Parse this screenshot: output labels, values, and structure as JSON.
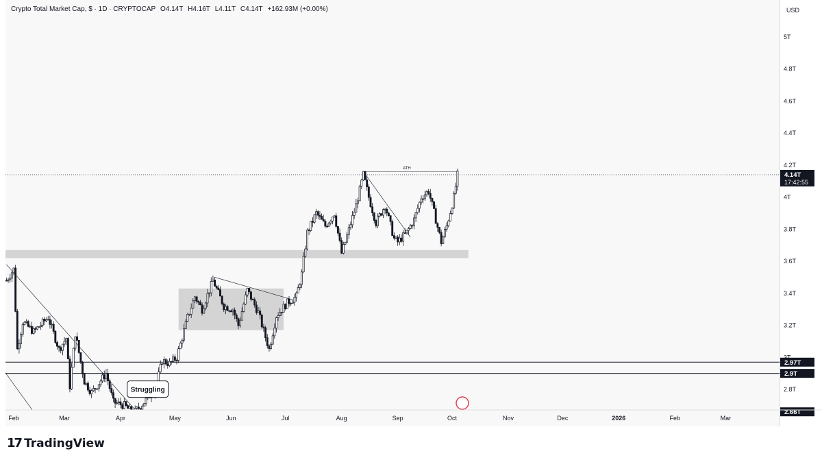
{
  "legend": {
    "symbol": "Crypto Total Market Cap, $ · 1D · CRYPTOCAP",
    "open": "O4.14T",
    "high": "H4.16T",
    "low": "L4.11T",
    "close": "C4.14T",
    "change": "+162.93M (+0.00%)"
  },
  "currency": "USD",
  "brand": "TradingView",
  "colors": {
    "up": "#131722",
    "down": "#131722",
    "zone": "#d4d4d4",
    "price_label_bg": "#131722"
  },
  "chart_data": {
    "type": "candlestick",
    "x_tick_labels": [
      "Feb",
      "Mar",
      "Apr",
      "May",
      "Jun",
      "Jul",
      "Aug",
      "Sep",
      "Oct",
      "Nov",
      "Dec",
      "2026",
      "Feb",
      "Mar"
    ],
    "y_tick_labels": [
      "2.8T",
      "3T",
      "3.2T",
      "3.4T",
      "3.6T",
      "3.8T",
      "4T",
      "4.2T",
      "4.4T",
      "4.6T",
      "4.8T",
      "5T"
    ],
    "y_ticks": [
      2.8,
      3.0,
      3.2,
      3.4,
      3.6,
      3.8,
      4.0,
      4.2,
      4.4,
      4.6,
      4.8,
      5.0
    ],
    "ylim": [
      2.66,
      5.12
    ],
    "price_labels": [
      {
        "text": "4.14T",
        "sub": "17:42:55",
        "value": 4.14
      },
      {
        "text": "2.97T",
        "value": 2.97
      },
      {
        "text": "2.9T",
        "value": 2.9
      },
      {
        "text": "2.66T",
        "value": 2.66
      }
    ],
    "horizontal_lines": [
      2.97,
      2.9
    ],
    "current_price": 4.14,
    "close_path": [
      [
        "2025-01-28",
        3.48
      ],
      [
        "2025-02-01",
        3.55
      ],
      [
        "2025-02-03",
        3.05
      ],
      [
        "2025-02-06",
        3.22
      ],
      [
        "2025-02-12",
        3.16
      ],
      [
        "2025-02-20",
        3.25
      ],
      [
        "2025-02-26",
        3.05
      ],
      [
        "2025-03-02",
        3.12
      ],
      [
        "2025-03-04",
        2.82
      ],
      [
        "2025-03-07",
        3.15
      ],
      [
        "2025-03-12",
        2.85
      ],
      [
        "2025-03-16",
        2.78
      ],
      [
        "2025-03-24",
        2.9
      ],
      [
        "2025-03-28",
        2.72
      ],
      [
        "2025-04-03",
        2.7
      ],
      [
        "2025-04-08",
        2.65
      ],
      [
        "2025-04-14",
        2.72
      ],
      [
        "2025-04-20",
        2.8
      ],
      [
        "2025-04-24",
        2.98
      ],
      [
        "2025-04-28",
        2.96
      ],
      [
        "2025-05-02",
        3.0
      ],
      [
        "2025-05-08",
        3.25
      ],
      [
        "2025-05-12",
        3.38
      ],
      [
        "2025-05-16",
        3.3
      ],
      [
        "2025-05-22",
        3.48
      ],
      [
        "2025-05-28",
        3.32
      ],
      [
        "2025-06-02",
        3.3
      ],
      [
        "2025-06-05",
        3.2
      ],
      [
        "2025-06-10",
        3.42
      ],
      [
        "2025-06-16",
        3.28
      ],
      [
        "2025-06-22",
        3.05
      ],
      [
        "2025-06-26",
        3.26
      ],
      [
        "2025-07-02",
        3.34
      ],
      [
        "2025-07-07",
        3.38
      ],
      [
        "2025-07-10",
        3.52
      ],
      [
        "2025-07-13",
        3.78
      ],
      [
        "2025-07-18",
        3.9
      ],
      [
        "2025-07-23",
        3.82
      ],
      [
        "2025-07-28",
        3.9
      ],
      [
        "2025-08-01",
        3.65
      ],
      [
        "2025-08-03",
        3.72
      ],
      [
        "2025-08-09",
        3.95
      ],
      [
        "2025-08-13",
        4.14
      ],
      [
        "2025-08-16",
        4.0
      ],
      [
        "2025-08-20",
        3.84
      ],
      [
        "2025-08-25",
        3.95
      ],
      [
        "2025-08-30",
        3.74
      ],
      [
        "2025-09-01",
        3.72
      ],
      [
        "2025-09-06",
        3.78
      ],
      [
        "2025-09-10",
        3.86
      ],
      [
        "2025-09-14",
        4.0
      ],
      [
        "2025-09-18",
        4.04
      ],
      [
        "2025-09-22",
        3.86
      ],
      [
        "2025-09-25",
        3.72
      ],
      [
        "2025-09-28",
        3.82
      ],
      [
        "2025-10-02",
        4.0
      ],
      [
        "2025-10-04",
        4.14
      ]
    ],
    "zones": [
      {
        "x1": "2025-01-20",
        "x2": "2025-10-10",
        "y1": 3.62,
        "y2": 3.67
      },
      {
        "x1": "2025-05-03",
        "x2": "2025-06-30",
        "y1": 3.17,
        "y2": 3.43
      }
    ],
    "trendlines": [
      {
        "x1": "2025-01-28",
        "y1": 3.58,
        "x2": "2025-04-10",
        "y2": 2.66
      },
      {
        "x1": "2025-01-20",
        "y1": 3.02,
        "x2": "2025-02-12",
        "y2": 2.66
      },
      {
        "x1": "2025-05-23",
        "y1": 3.5,
        "x2": "2025-07-05",
        "y2": 3.36
      },
      {
        "x1": "2025-08-13",
        "y1": 4.16,
        "x2": "2025-09-08",
        "y2": 3.75
      },
      {
        "x1": "2025-08-13",
        "y1": 4.16,
        "x2": "2025-10-04",
        "y2": 4.16
      }
    ],
    "annotations": [
      {
        "text": "ATH",
        "x": "2025-09-06",
        "y": 4.17
      },
      {
        "text": "Struggling",
        "x": "2025-04-16",
        "y": 2.78
      }
    ]
  }
}
